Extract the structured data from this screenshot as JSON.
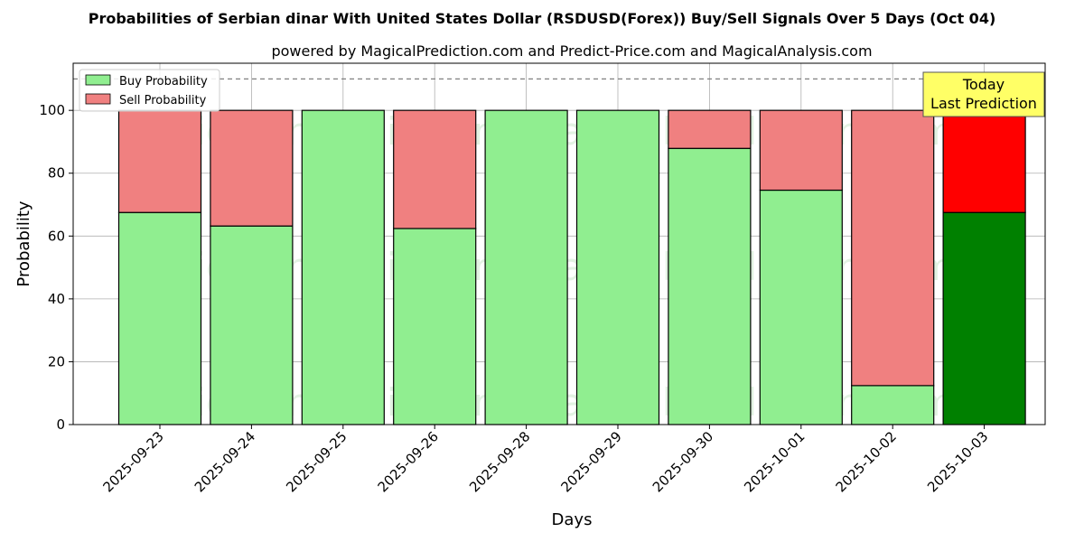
{
  "chart_data": {
    "type": "bar",
    "stacked": true,
    "title": "Probabilities of Serbian dinar With United States Dollar (RSDUSD(Forex)) Buy/Sell Signals Over 5 Days (Oct 04)",
    "subtitle": "powered by MagicalPrediction.com and Predict-Price.com and MagicalAnalysis.com",
    "xlabel": "Days",
    "ylabel": "Probability",
    "ylim": [
      0,
      115
    ],
    "yticks": [
      0,
      20,
      40,
      60,
      80,
      100
    ],
    "grid": true,
    "legend_placement": "top-left",
    "categories": [
      "2025-09-23",
      "2025-09-24",
      "2025-09-25",
      "2025-09-26",
      "2025-09-28",
      "2025-09-29",
      "2025-09-30",
      "2025-10-01",
      "2025-10-02",
      "2025-10-03"
    ],
    "series": [
      {
        "name": "Buy Probability",
        "color": "#90ee90",
        "values": [
          67.5,
          63.2,
          100,
          62.4,
          100,
          100,
          87.9,
          74.6,
          12.4,
          67.5
        ]
      },
      {
        "name": "Sell Probability",
        "color": "#f08080",
        "values": [
          32.5,
          36.8,
          0,
          37.6,
          0,
          0,
          12.1,
          25.4,
          87.6,
          32.5
        ]
      }
    ],
    "highlight": {
      "index": 9,
      "buy_color": "#008000",
      "sell_color": "#ff0000"
    },
    "reference_line": {
      "y": 110,
      "style": "dashed",
      "color": "#808080"
    },
    "annotation": {
      "lines": [
        "Today",
        "Last Prediction"
      ],
      "background": "#ffff66",
      "target_index": 9
    },
    "watermarks": [
      "MagicalAnalysis.com",
      "MagicalPrediction.com"
    ]
  }
}
